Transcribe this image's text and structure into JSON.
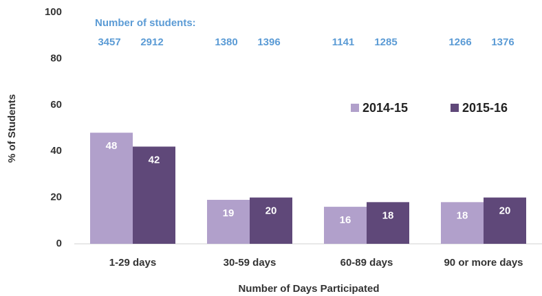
{
  "chart_data": {
    "type": "bar",
    "x_label": "Number of Days Participated",
    "y_label": "% of Students",
    "categories": [
      "1-29 days",
      "30-59 days",
      "60-89 days",
      "90 or more days"
    ],
    "series": [
      {
        "name": "2014-15",
        "color": "#b1a0cb",
        "values": [
          48,
          19,
          16,
          18
        ],
        "counts": [
          3457,
          1380,
          1141,
          1266
        ]
      },
      {
        "name": "2015-16",
        "color": "#5f4879",
        "values": [
          42,
          20,
          18,
          20
        ],
        "counts": [
          2912,
          1396,
          1285,
          1376
        ]
      }
    ],
    "counts_label": "Number of students:",
    "ylim": [
      0,
      100
    ],
    "yticks": [
      0,
      20,
      40,
      60,
      80,
      100
    ],
    "grid": false,
    "legend": "right"
  }
}
